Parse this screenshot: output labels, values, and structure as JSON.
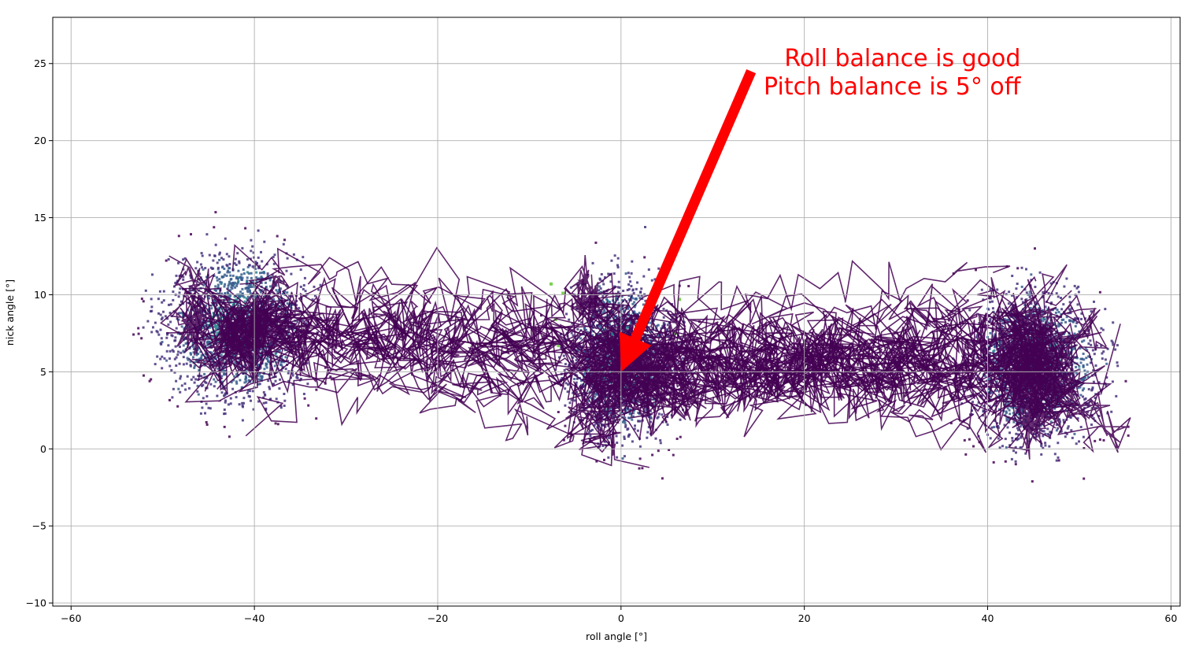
{
  "chart_data": {
    "type": "heatmap",
    "subtype": "2d-histogram",
    "colormap": "viridis",
    "xlabel": "roll angle [°]",
    "ylabel": "nick angle [°]",
    "xlim": [
      -62,
      61
    ],
    "ylim": [
      -10.2,
      28
    ],
    "x_ticks": [
      -60,
      -40,
      -20,
      0,
      20,
      40,
      60
    ],
    "x_tick_labels": [
      "−60",
      "−40",
      "−20",
      "0",
      "20",
      "40",
      "60"
    ],
    "y_ticks": [
      -10,
      -5,
      0,
      5,
      10,
      15,
      20,
      25
    ],
    "y_tick_labels": [
      "−10",
      "−5",
      "0",
      "5",
      "10",
      "15",
      "20",
      "25"
    ],
    "grid": true,
    "clusters": [
      {
        "x": -42,
        "y": 8,
        "sx": 6.5,
        "sy": 4
      },
      {
        "x": 0,
        "y": 6,
        "sx": 5,
        "sy": 4.2
      },
      {
        "x": 45,
        "y": 5.5,
        "sx": 6,
        "sy": 4
      }
    ],
    "annotations": [
      {
        "lines": [
          "Roll balance is good",
          "Pitch balance is 5° off"
        ],
        "text_anchor_point": {
          "x": 43.6,
          "y": 23.7
        },
        "arrow_from": {
          "x": 14.2,
          "y": 24.5
        },
        "arrow_to": {
          "x": 0,
          "y": 5
        },
        "color": "#ff0000"
      }
    ]
  },
  "colors": {
    "grid": "#b0b0b0",
    "axes": "#000000",
    "trajectory": "#440154",
    "annotation": "#ff0000"
  }
}
